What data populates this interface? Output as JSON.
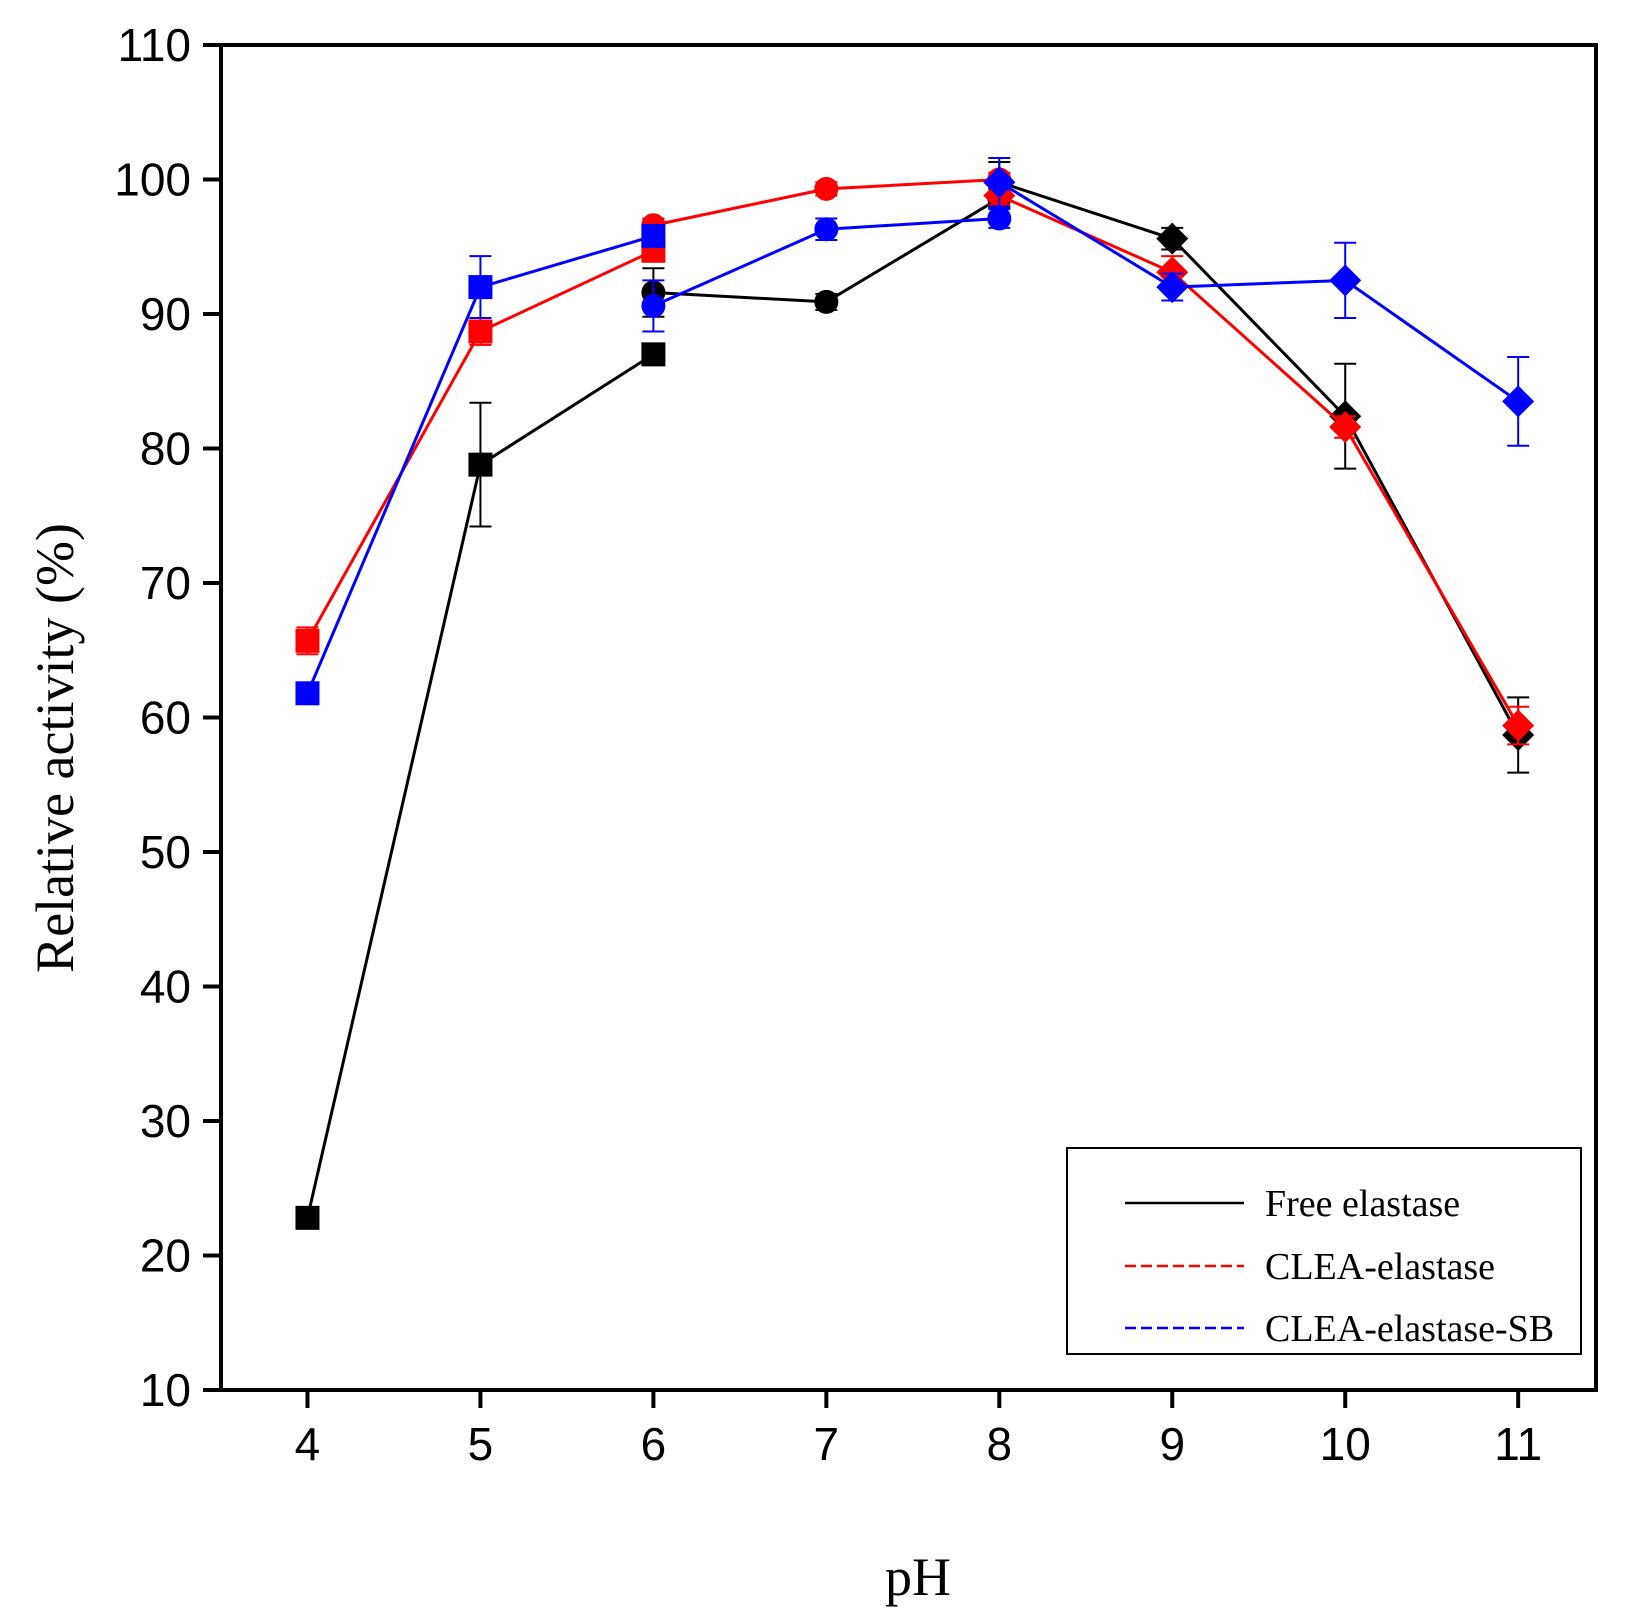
{
  "chart_data": {
    "type": "line",
    "xlabel": "pH",
    "ylabel": "Relative activity (%)",
    "xlim": [
      3.5,
      11.45
    ],
    "ylim": [
      10,
      110
    ],
    "xticks": [
      4,
      5,
      6,
      7,
      8,
      9,
      10,
      11
    ],
    "yticks": [
      10,
      20,
      30,
      40,
      50,
      60,
      70,
      80,
      90,
      100,
      110
    ],
    "grid": false,
    "legend_position": "bottom-right",
    "legend": [
      {
        "label": "Free elastase",
        "color": "#000000",
        "dash": "solid"
      },
      {
        "label": "CLEA-elastase",
        "color": "#ff0000",
        "dash": "dashed"
      },
      {
        "label": "CLEA-elastase-SB",
        "color": "#0000ff",
        "dash": "dashed"
      }
    ],
    "series": [
      {
        "color": "#000000",
        "marker": "square",
        "x": [
          4,
          5,
          6
        ],
        "y": [
          22.8,
          78.8,
          87.0
        ],
        "err": [
          0.6,
          4.6,
          0.8
        ]
      },
      {
        "color": "#000000",
        "marker": "circle",
        "x": [
          6,
          7,
          8
        ],
        "y": [
          91.6,
          90.9,
          98.6
        ],
        "err": [
          1.8,
          0.6,
          0.7
        ]
      },
      {
        "color": "#000000",
        "marker": "diamond",
        "x": [
          8,
          9,
          10,
          11
        ],
        "y": [
          99.8,
          95.6,
          82.4,
          58.7
        ],
        "err": [
          1.5,
          0.8,
          3.9,
          2.8
        ]
      },
      {
        "color": "#ff0000",
        "marker": "square",
        "x": [
          4,
          5,
          6
        ],
        "y": [
          65.7,
          88.7,
          94.7
        ],
        "err": [
          1.0,
          1.0,
          0.8
        ]
      },
      {
        "color": "#ff0000",
        "marker": "circle",
        "x": [
          6,
          7,
          8
        ],
        "y": [
          96.6,
          99.3,
          100.0
        ],
        "err": [
          0.5,
          0.5,
          0.5
        ]
      },
      {
        "color": "#ff0000",
        "marker": "diamond",
        "x": [
          8,
          9,
          10,
          11
        ],
        "y": [
          98.8,
          93.1,
          81.6,
          59.4
        ],
        "err": [
          0.7,
          1.2,
          0.8,
          1.4
        ]
      },
      {
        "color": "#0000ff",
        "marker": "square",
        "x": [
          4,
          5,
          6
        ],
        "y": [
          61.8,
          92.0,
          95.8
        ],
        "err": [
          0.5,
          2.3,
          0.5
        ]
      },
      {
        "color": "#0000ff",
        "marker": "circle",
        "x": [
          6,
          7,
          8
        ],
        "y": [
          90.6,
          96.3,
          97.1
        ],
        "err": [
          1.9,
          0.8,
          0.7
        ]
      },
      {
        "color": "#0000ff",
        "marker": "diamond",
        "x": [
          8,
          9,
          10,
          11
        ],
        "y": [
          99.8,
          92.0,
          92.5,
          83.5
        ],
        "err": [
          1.8,
          1.0,
          2.8,
          3.3
        ]
      }
    ]
  }
}
